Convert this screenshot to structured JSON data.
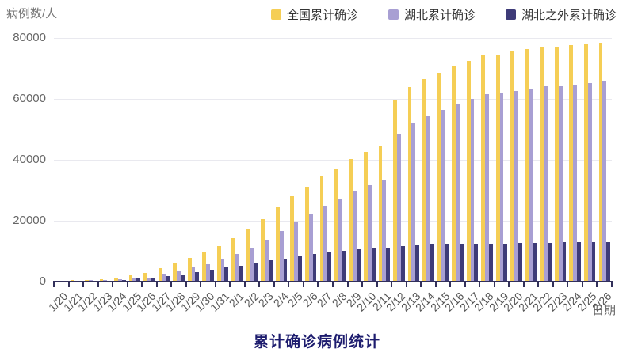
{
  "chart_data": {
    "type": "bar",
    "title": "累计确诊病例统计",
    "xlabel": "日期",
    "ylabel": "病例数/人",
    "ylim": [
      0,
      80000
    ],
    "yticks": [
      0,
      20000,
      40000,
      60000,
      80000
    ],
    "grid": true,
    "legend_position": "top-right",
    "categories": [
      "1/20",
      "1/21",
      "1/22",
      "1/23",
      "1/24",
      "1/25",
      "1/26",
      "1/27",
      "1/28",
      "1/29",
      "1/30",
      "1/31",
      "2/1",
      "2/2",
      "2/3",
      "2/4",
      "2/5",
      "2/6",
      "2/7",
      "2/8",
      "2/9",
      "2/10",
      "2/11",
      "2/12",
      "2/13",
      "2/14",
      "2/15",
      "2/16",
      "2/17",
      "2/18",
      "2/19",
      "2/20",
      "2/21",
      "2/22",
      "2/23",
      "2/24",
      "2/25",
      "2/26"
    ],
    "series": [
      {
        "name": "全国累计确诊",
        "color": "#f5ce55",
        "values": [
          291,
          440,
          571,
          830,
          1287,
          1975,
          2744,
          4515,
          5974,
          7711,
          9692,
          11791,
          14380,
          17205,
          20438,
          24324,
          28018,
          31161,
          34546,
          37198,
          40171,
          42638,
          44653,
          59804,
          63851,
          66492,
          68500,
          70548,
          72436,
          74185,
          74576,
          75465,
          76288,
          76936,
          77150,
          77658,
          78064,
          78497
        ]
      },
      {
        "name": "湖北累计确诊",
        "color": "#a89fd3",
        "values": [
          270,
          375,
          444,
          549,
          729,
          1052,
          1423,
          2714,
          3554,
          4586,
          5806,
          7153,
          9074,
          11177,
          13522,
          16678,
          19665,
          22112,
          24953,
          27100,
          29631,
          31728,
          33366,
          48206,
          51986,
          54406,
          56249,
          58182,
          59989,
          61682,
          62031,
          62662,
          63454,
          64084,
          64287,
          64786,
          65187,
          65596
        ]
      },
      {
        "name": "湖北之外累计确诊",
        "color": "#3e3b78",
        "values": [
          21,
          65,
          127,
          281,
          558,
          923,
          1321,
          1801,
          2420,
          3125,
          3886,
          4638,
          5306,
          6028,
          6916,
          7646,
          8353,
          9049,
          9593,
          10098,
          10540,
          10910,
          11287,
          11598,
          11865,
          12086,
          12251,
          12366,
          12447,
          12503,
          12545,
          12803,
          12834,
          12852,
          12863,
          12872,
          12877,
          12901
        ]
      }
    ]
  }
}
